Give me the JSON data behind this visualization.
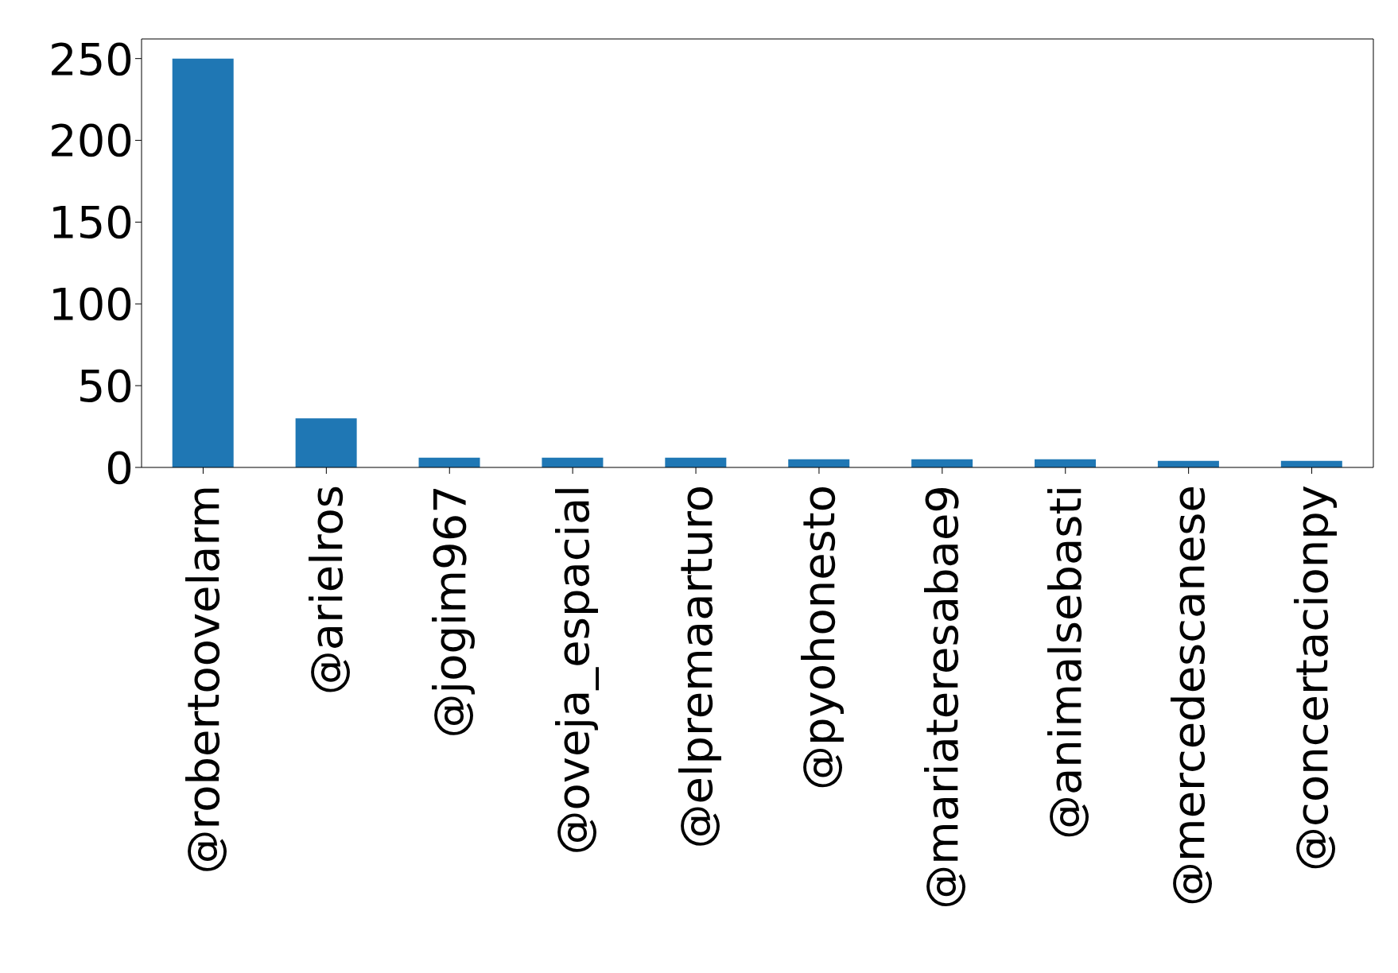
{
  "chart_data": {
    "type": "bar",
    "categories": [
      "@robertoovelarm",
      "@arielros",
      "@jogim967",
      "@oveja_espacial",
      "@elpremaarturo",
      "@pyohonesto",
      "@mariateresabae9",
      "@animalsebasti",
      "@mercedescanese",
      "@concertacionpy"
    ],
    "values": [
      250,
      30,
      6,
      6,
      6,
      5,
      5,
      5,
      4,
      4
    ],
    "color": "#1f77b4",
    "ylim": [
      0,
      262
    ],
    "yticks": [
      0,
      50,
      100,
      150,
      200,
      250
    ],
    "grid": false
  }
}
